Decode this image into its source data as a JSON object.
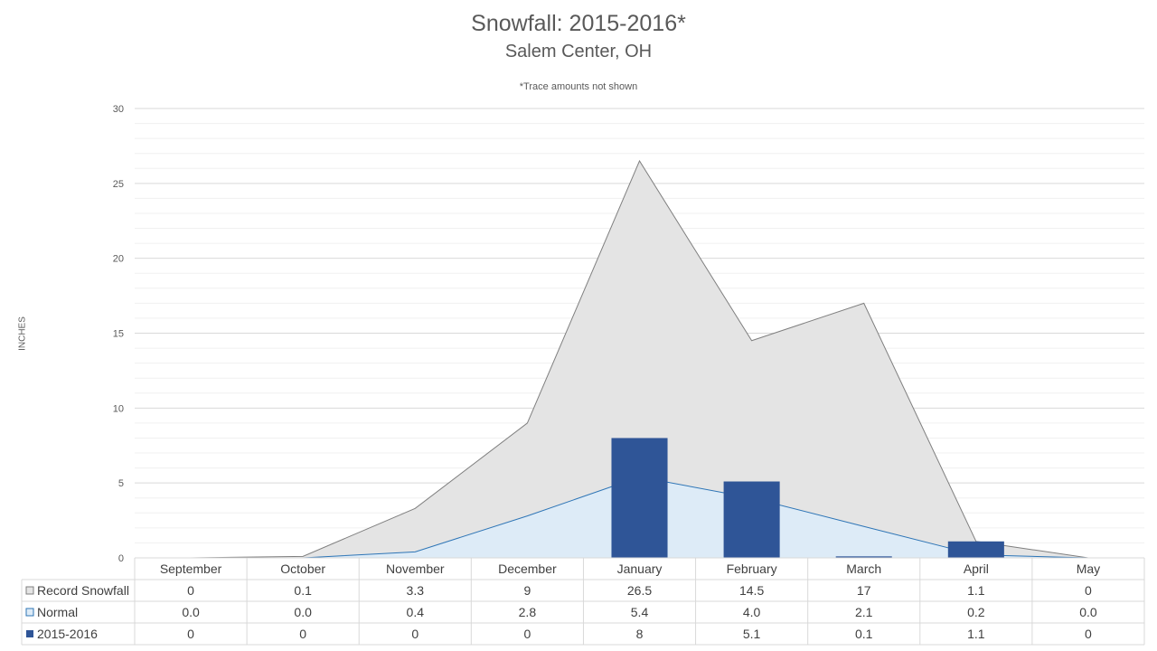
{
  "chart_data": {
    "type": "bar",
    "title": "Snowfall: 2015-2016*",
    "subtitle": "Salem Center, OH",
    "note": "*Trace amounts not shown",
    "xlabel": "",
    "ylabel": "INCHES",
    "ylim": [
      0,
      30
    ],
    "yticks": [
      0,
      5,
      10,
      15,
      20,
      25,
      30
    ],
    "grid": true,
    "legend_placement": "data table",
    "categories": [
      "September",
      "October",
      "November",
      "December",
      "January",
      "February",
      "March",
      "April",
      "May"
    ],
    "series": [
      {
        "name": "Record Snowfall",
        "type": "area",
        "values": [
          0,
          0.1,
          3.3,
          9,
          26.5,
          14.5,
          17,
          1.1,
          0
        ],
        "labels": [
          "0",
          "0.1",
          "3.3",
          "9",
          "26.5",
          "14.5",
          "17",
          "1.1",
          "0"
        ],
        "color": "#e4e4e4",
        "line_color": "#7f7f7f"
      },
      {
        "name": "Normal",
        "type": "area",
        "values": [
          0.0,
          0.0,
          0.4,
          2.8,
          5.4,
          4.0,
          2.1,
          0.2,
          0.0
        ],
        "labels": [
          "0.0",
          "0.0",
          "0.4",
          "2.8",
          "5.4",
          "4.0",
          "2.1",
          "0.2",
          "0.0"
        ],
        "color": "#ddebf7",
        "line_color": "#2e75b6"
      },
      {
        "name": "2015-2016",
        "type": "bar",
        "values": [
          0,
          0,
          0,
          0,
          8,
          5.1,
          0.1,
          1.1,
          0
        ],
        "labels": [
          "0",
          "0",
          "0",
          "0",
          "8",
          "5.1",
          "0.1",
          "1.1",
          "0"
        ],
        "color": "#2f5597"
      }
    ]
  }
}
